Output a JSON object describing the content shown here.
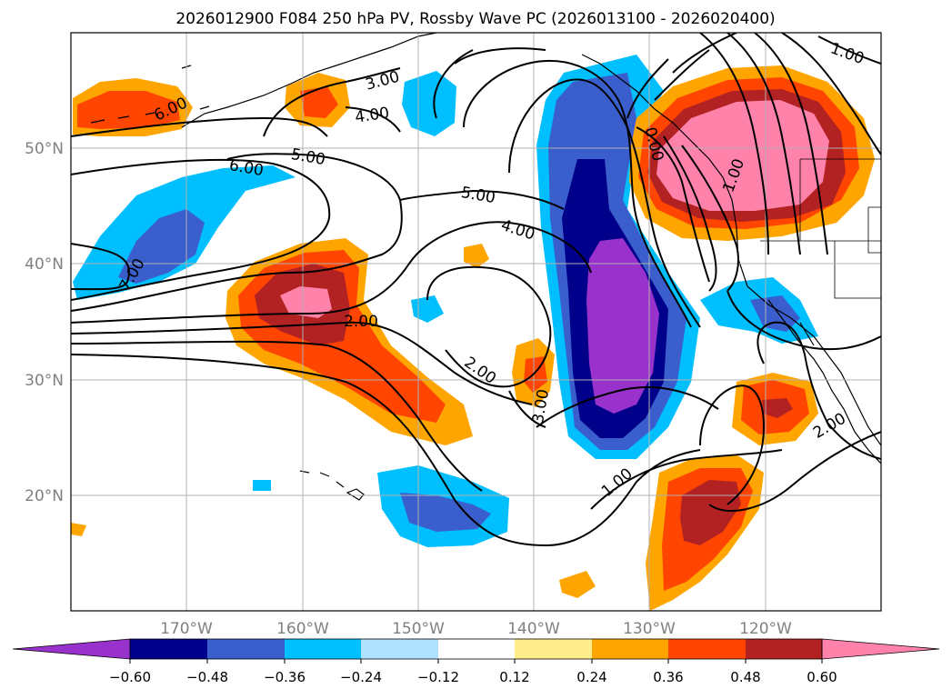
{
  "title": "2026012900 F084 250 hPa PV, Rossby Wave PC (2026013100 - 2026020400)",
  "map": {
    "lon_labels": [
      "170°W",
      "160°W",
      "150°W",
      "140°W",
      "130°W",
      "120°W"
    ],
    "lon_values": [
      -170,
      -160,
      -150,
      -140,
      -130,
      -120
    ],
    "lat_labels": [
      "50°N",
      "40°N",
      "30°N",
      "20°N"
    ],
    "lat_values": [
      50,
      40,
      30,
      20
    ],
    "extent": {
      "lon_min": -180,
      "lon_max": -110,
      "lat_min": 10,
      "lat_max": 60
    },
    "label_color": "#808080",
    "contour_labels": [
      "6.00",
      "6.00",
      "5.00",
      "5.00",
      "4.00",
      "4.00",
      "3.00",
      "3.00",
      "2.00",
      "2.00",
      "2.00",
      "1.00",
      "1.00",
      "7.00",
      "1.00",
      "0.00"
    ]
  },
  "colorbar": {
    "ticks": [
      "−0.60",
      "−0.48",
      "−0.36",
      "−0.24",
      "−0.12",
      "0.12",
      "0.24",
      "0.36",
      "0.48",
      "0.60"
    ],
    "colors": [
      "#9932cc",
      "#00008b",
      "#3a5fcd",
      "#00bfff",
      "#b0e2ff",
      "#ffffff",
      "#ffec8b",
      "#ffa500",
      "#ff4500",
      "#b22222",
      "#ff82ab"
    ]
  },
  "colors": {
    "neg_1": "#b0e2ff",
    "neg_2": "#00bfff",
    "neg_3": "#3a5fcd",
    "neg_4": "#00008b",
    "neg_5": "#9932cc",
    "pos_1": "#ffec8b",
    "pos_2": "#ffa500",
    "pos_3": "#ff4500",
    "pos_4": "#b22222",
    "pos_5": "#ff82ab"
  }
}
